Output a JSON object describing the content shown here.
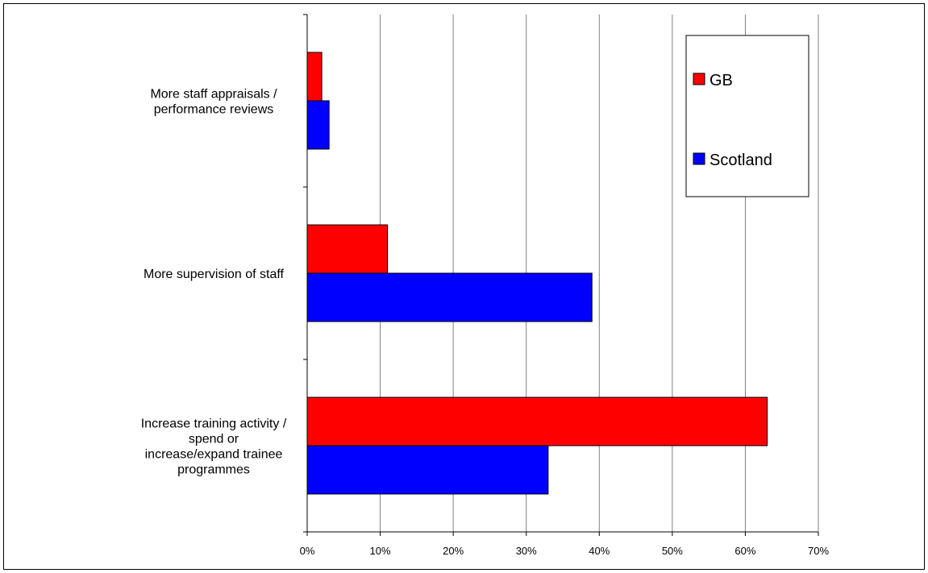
{
  "chart_data": {
    "type": "bar",
    "orientation": "horizontal",
    "categories": [
      [
        "More staff appraisals /",
        "performance reviews"
      ],
      [
        "More supervision of staff"
      ],
      [
        "Increase training activity /",
        "spend or",
        "increase/expand trainee",
        "programmes"
      ]
    ],
    "series": [
      {
        "name": "GB",
        "values": [
          2,
          11,
          63
        ],
        "color": "#ff0000"
      },
      {
        "name": "Scotland",
        "values": [
          3,
          39,
          33
        ],
        "color": "#0000ff"
      }
    ],
    "xlim": [
      0,
      70
    ],
    "xticks": [
      0,
      10,
      20,
      30,
      40,
      50,
      60,
      70
    ],
    "tick_format": "{v}%",
    "grid": true,
    "legend_position": "top-right",
    "title": "",
    "xlabel": "",
    "ylabel": ""
  }
}
